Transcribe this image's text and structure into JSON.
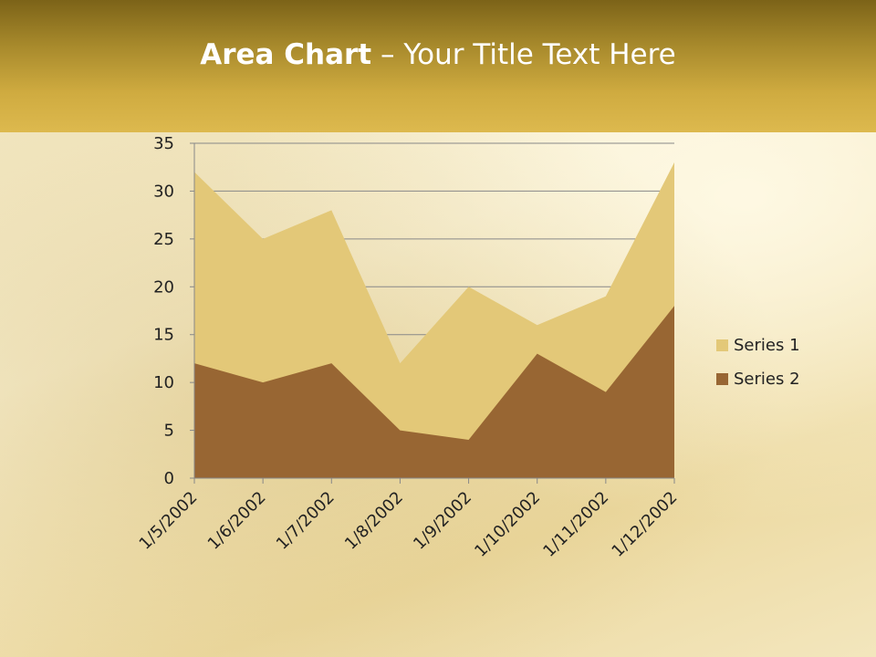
{
  "slide": {
    "title_bold": "Area Chart",
    "title_rest": " – Your Title Text Here"
  },
  "chart_data": {
    "type": "area",
    "categories": [
      "1/5/2002",
      "1/6/2002",
      "1/7/2002",
      "1/8/2002",
      "1/9/2002",
      "1/10/2002",
      "1/11/2002",
      "1/12/2002"
    ],
    "series": [
      {
        "name": "Series 1",
        "values": [
          32,
          25,
          28,
          12,
          20,
          16,
          19,
          33
        ],
        "color": "#e3c878"
      },
      {
        "name": "Series 2",
        "values": [
          12,
          10,
          12,
          5,
          4,
          13,
          9,
          18
        ],
        "color": "#986633"
      }
    ],
    "ylim": [
      0,
      35
    ],
    "yticks": [
      0,
      5,
      10,
      15,
      20,
      25,
      30,
      35
    ],
    "grid": true,
    "legend": "right"
  }
}
